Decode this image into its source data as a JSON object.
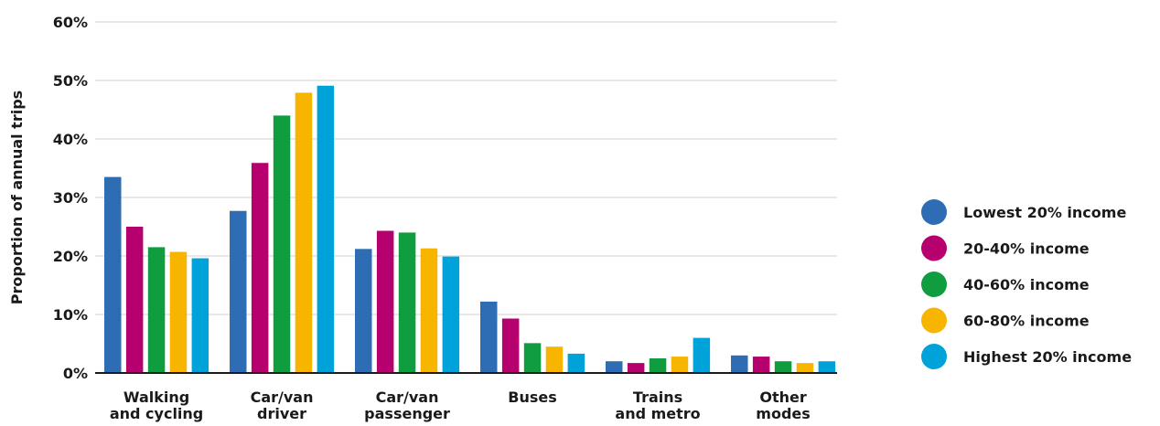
{
  "chart_data": {
    "type": "bar",
    "title": "",
    "xlabel": "",
    "ylabel": "Proportion of annual trips",
    "ylim": [
      0,
      60
    ],
    "yticks": [
      0,
      10,
      20,
      30,
      40,
      50,
      60
    ],
    "ytick_labels": [
      "0%",
      "10%",
      "20%",
      "30%",
      "40%",
      "50%",
      "60%"
    ],
    "grid": true,
    "legend_position": "right",
    "categories": [
      [
        "Walking",
        "and cycling"
      ],
      [
        "Car/van",
        "driver"
      ],
      [
        "Car/van",
        "passenger"
      ],
      [
        "Buses"
      ],
      [
        "Trains",
        "and metro"
      ],
      [
        "Other",
        "modes"
      ]
    ],
    "series": [
      {
        "name": "Lowest 20% income",
        "color": "#2e6db4",
        "values": [
          33.5,
          27.7,
          21.2,
          12.2,
          2.0,
          3.0
        ]
      },
      {
        "name": "20-40% income",
        "color": "#b5006e",
        "values": [
          25.0,
          35.9,
          24.3,
          9.3,
          1.7,
          2.8
        ]
      },
      {
        "name": "40-60% income",
        "color": "#0f9d3f",
        "values": [
          21.5,
          44.0,
          24.0,
          5.1,
          2.5,
          2.0
        ]
      },
      {
        "name": "60-80% income",
        "color": "#f7b500",
        "values": [
          20.7,
          47.9,
          21.3,
          4.5,
          2.8,
          1.7
        ]
      },
      {
        "name": "Highest 20% income",
        "color": "#00a3d9",
        "values": [
          19.6,
          49.1,
          19.9,
          3.3,
          6.0,
          2.0
        ]
      }
    ]
  }
}
